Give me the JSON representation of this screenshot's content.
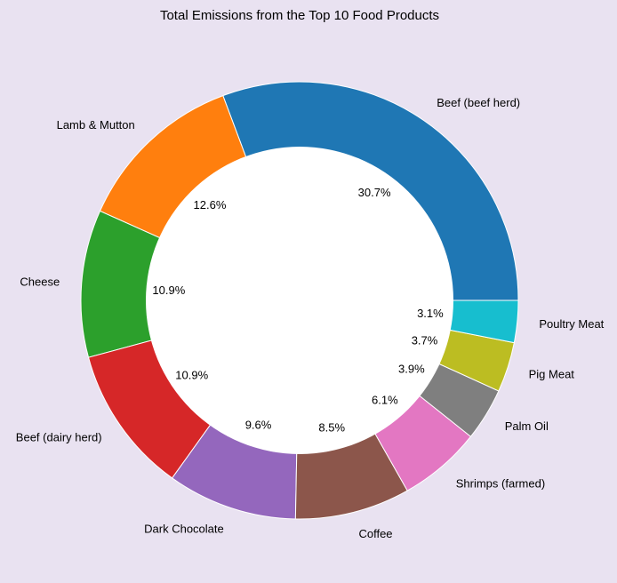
{
  "chart_data": {
    "type": "pie",
    "title": "Total Emissions from the Top 10 Food Products",
    "categories": [
      "Beef (beef herd)",
      "Lamb & Mutton",
      "Cheese",
      "Beef (dairy herd)",
      "Dark Chocolate",
      "Coffee",
      "Shrimps (farmed)",
      "Palm Oil",
      "Pig Meat",
      "Poultry Meat"
    ],
    "values": [
      30.7,
      12.6,
      10.9,
      10.9,
      9.6,
      8.5,
      6.1,
      3.9,
      3.7,
      3.1
    ],
    "percent_labels": [
      "30.7%",
      "12.6%",
      "10.9%",
      "10.9%",
      "9.6%",
      "8.5%",
      "6.1%",
      "3.9%",
      "3.7%",
      "3.1%"
    ],
    "colors": [
      "#1f77b4",
      "#ff7f0e",
      "#2ca02c",
      "#d62728",
      "#9467bd",
      "#8c564b",
      "#e377c2",
      "#7f7f7f",
      "#bcbd22",
      "#17becf"
    ],
    "start_angle_deg": 0,
    "direction": "counterclockwise",
    "donut_hole": true,
    "background_color": "#e9e2f1"
  }
}
